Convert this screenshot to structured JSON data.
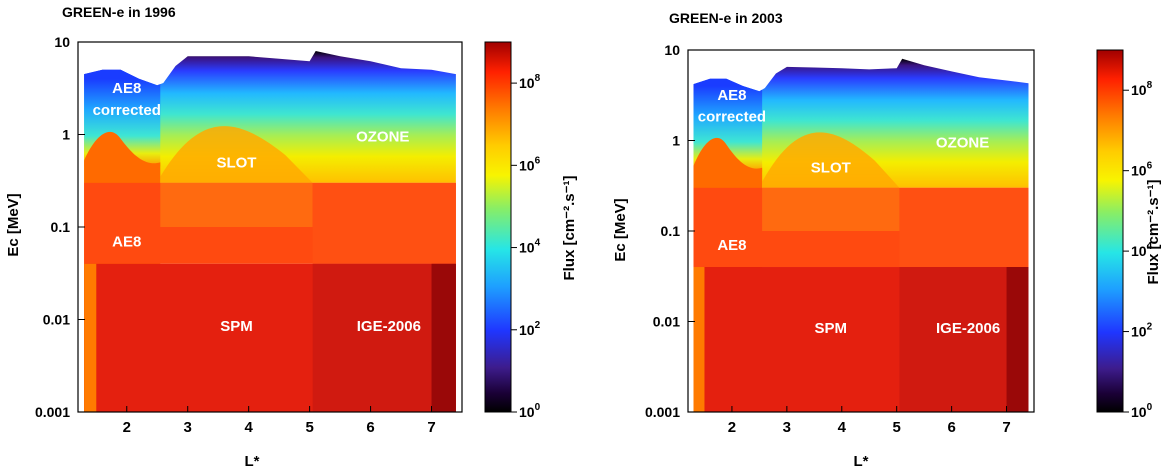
{
  "chart_data": [
    {
      "type": "heatmap",
      "title": "GREEN-e in 1996",
      "xlabel": "L*",
      "ylabel": "Ec [MeV]",
      "xlim": [
        1.2,
        7.5
      ],
      "ylim": [
        0.001,
        10
      ],
      "y_scale": "log",
      "x_ticks": [
        "2",
        "3",
        "4",
        "5",
        "6",
        "7"
      ],
      "y_ticks": [
        "0.001",
        "0.01",
        "0.1",
        "1",
        "10"
      ],
      "colorbar": {
        "label": "Flux [cm⁻².s⁻¹]",
        "scale": "log",
        "range": [
          1,
          1000000000
        ],
        "ticks": [
          {
            "base": "10",
            "exp": "0"
          },
          {
            "base": "10",
            "exp": "2"
          },
          {
            "base": "10",
            "exp": "4"
          },
          {
            "base": "10",
            "exp": "6"
          },
          {
            "base": "10",
            "exp": "8"
          }
        ]
      },
      "region_labels": [
        {
          "text": "AE8",
          "L": 2.0,
          "E": 3.2
        },
        {
          "text": "corrected",
          "L": 2.0,
          "E": 1.85
        },
        {
          "text": "SLOT",
          "L": 3.8,
          "E": 0.5
        },
        {
          "text": "OZONE",
          "L": 6.2,
          "E": 0.95
        },
        {
          "text": "AE8",
          "L": 2.0,
          "E": 0.07
        },
        {
          "text": "SPM",
          "L": 3.8,
          "E": 0.0085
        },
        {
          "text": "IGE-2006",
          "L": 6.3,
          "E": 0.0085
        }
      ],
      "upper_edge_MeV": [
        [
          1.3,
          4.5
        ],
        [
          1.6,
          5.0
        ],
        [
          1.9,
          5.0
        ],
        [
          2.2,
          4.0
        ],
        [
          2.5,
          3.4
        ],
        [
          2.6,
          3.6
        ],
        [
          2.8,
          5.5
        ],
        [
          3.0,
          7.0
        ],
        [
          3.5,
          7.0
        ],
        [
          4.0,
          7.0
        ],
        [
          4.5,
          6.6
        ],
        [
          5.0,
          6.2
        ],
        [
          5.1,
          8.0
        ],
        [
          5.5,
          7.0
        ],
        [
          6.0,
          6.2
        ],
        [
          6.5,
          5.2
        ],
        [
          7.0,
          5.0
        ],
        [
          7.4,
          4.5
        ]
      ]
    },
    {
      "type": "heatmap",
      "title": "GREEN-e in 2003",
      "xlabel": "L*",
      "ylabel": "Ec [MeV]",
      "xlim": [
        1.2,
        7.5
      ],
      "ylim": [
        0.001,
        10
      ],
      "y_scale": "log",
      "x_ticks": [
        "2",
        "3",
        "4",
        "5",
        "6",
        "7"
      ],
      "y_ticks": [
        "0.001",
        "0.01",
        "0.1",
        "1",
        "10"
      ],
      "colorbar": {
        "label": "Flux [cm⁻².s⁻¹]",
        "scale": "log",
        "range": [
          1,
          1000000000
        ],
        "ticks": [
          {
            "base": "10",
            "exp": "0"
          },
          {
            "base": "10",
            "exp": "2"
          },
          {
            "base": "10",
            "exp": "4"
          },
          {
            "base": "10",
            "exp": "6"
          },
          {
            "base": "10",
            "exp": "8"
          }
        ]
      },
      "region_labels": [
        {
          "text": "AE8",
          "L": 2.0,
          "E": 3.2
        },
        {
          "text": "corrected",
          "L": 2.0,
          "E": 1.85
        },
        {
          "text": "SLOT",
          "L": 3.8,
          "E": 0.5
        },
        {
          "text": "OZONE",
          "L": 6.2,
          "E": 0.95
        },
        {
          "text": "AE8",
          "L": 2.0,
          "E": 0.07
        },
        {
          "text": "SPM",
          "L": 3.8,
          "E": 0.0085
        },
        {
          "text": "IGE-2006",
          "L": 6.3,
          "E": 0.0085
        }
      ],
      "upper_edge_MeV": [
        [
          1.3,
          4.2
        ],
        [
          1.6,
          4.8
        ],
        [
          1.9,
          4.8
        ],
        [
          2.2,
          4.0
        ],
        [
          2.5,
          3.5
        ],
        [
          2.6,
          3.8
        ],
        [
          2.8,
          5.5
        ],
        [
          3.0,
          6.5
        ],
        [
          3.5,
          6.4
        ],
        [
          4.0,
          6.3
        ],
        [
          4.5,
          6.1
        ],
        [
          5.0,
          6.3
        ],
        [
          5.1,
          8.0
        ],
        [
          5.5,
          6.8
        ],
        [
          6.0,
          5.8
        ],
        [
          6.5,
          5.0
        ],
        [
          7.0,
          4.6
        ],
        [
          7.4,
          4.3
        ]
      ]
    }
  ]
}
